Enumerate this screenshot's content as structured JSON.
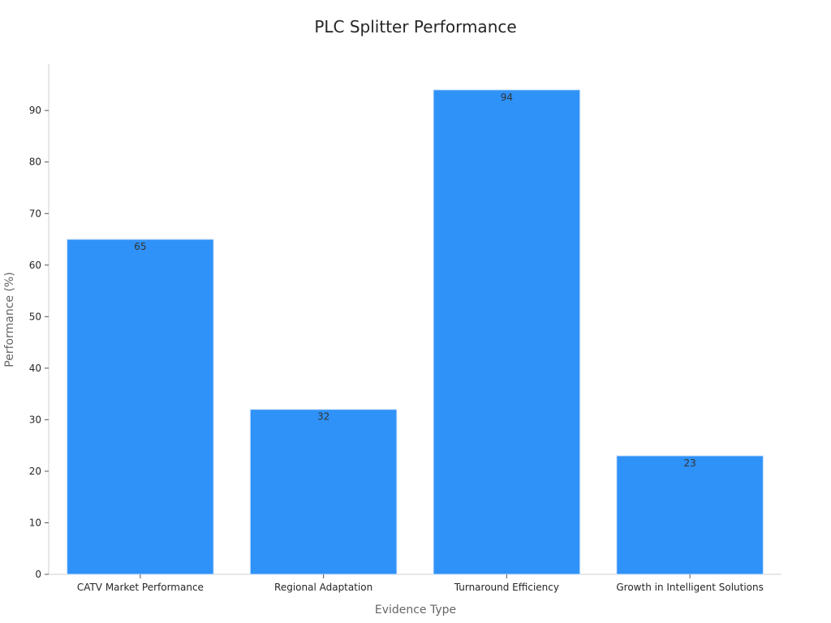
{
  "chart_data": {
    "type": "bar",
    "title": "PLC Splitter Performance",
    "xlabel": "Evidence Type",
    "ylabel": "Performance (%)",
    "categories": [
      "CATV Market Performance",
      "Regional Adaptation",
      "Turnaround Efficiency",
      "Growth in Intelligent Solutions"
    ],
    "values": [
      65,
      32,
      94,
      23
    ],
    "data_labels": [
      "65",
      "32",
      "94",
      "23"
    ],
    "ylim": [
      0,
      99
    ],
    "yticks": [
      0,
      10,
      20,
      30,
      40,
      50,
      60,
      70,
      80,
      90
    ],
    "grid": false,
    "legend": "none",
    "bar_color": "#2f92f8",
    "bar_edge_color": "#cfe3fb"
  }
}
